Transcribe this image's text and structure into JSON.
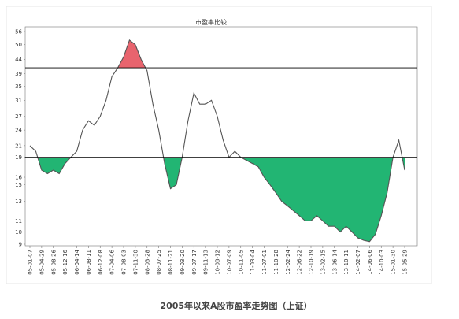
{
  "chart_data": {
    "type": "line",
    "title": "市盈率比较",
    "caption": "2005年以来A股市盈率走势图（上证）",
    "categories": [
      "05-01-07",
      null,
      "05-04-29",
      null,
      "05-08-26",
      null,
      "05-12-16",
      null,
      "06-04-14",
      null,
      "06-08-11",
      null,
      "06-12-08",
      null,
      "07-04-06",
      null,
      "07-08-03",
      null,
      "07-11-30",
      null,
      "08-03-28",
      null,
      "08-07-25",
      null,
      "08-11-21",
      null,
      "09-03-20",
      null,
      "09-07-17",
      null,
      "09-11-13",
      null,
      "10-03-12",
      null,
      "10-07-09",
      null,
      "10-11-05",
      null,
      "11-03-04",
      null,
      "11-07-01",
      null,
      "11-10-28",
      null,
      "12-02-24",
      null,
      "12-06-22",
      null,
      "12-10-19",
      null,
      "13-02-15",
      null,
      "13-06-14",
      null,
      "13-10-11",
      null,
      "14-02-07",
      null,
      "14-06-06",
      null,
      "14-10-03",
      null,
      "15-01-30",
      null,
      "15-05-29"
    ],
    "values": [
      21,
      20,
      17,
      16.5,
      17,
      16.5,
      18,
      19,
      20,
      24,
      26,
      25,
      27,
      31,
      38,
      41,
      45,
      52,
      50,
      44,
      40,
      30,
      24,
      18,
      14.5,
      15,
      19,
      26,
      33,
      30,
      30,
      31,
      27,
      22,
      19,
      20,
      19,
      18.5,
      18,
      17.5,
      16,
      15,
      14,
      13,
      12.5,
      12,
      11.5,
      11,
      11,
      11.5,
      11,
      10.5,
      10.5,
      10,
      10.5,
      10,
      9.5,
      9.3,
      9.2,
      9.8,
      11.5,
      14,
      19,
      22,
      17
    ],
    "color": "#555555",
    "log_scale": true,
    "ylim": [
      9,
      56
    ],
    "yticks": [
      9,
      10,
      11,
      13,
      15,
      16,
      19,
      21,
      24,
      27,
      31,
      35,
      39,
      44,
      50,
      56
    ],
    "reference_lines": [
      {
        "value": 41,
        "color": "#000000",
        "fill": "#e8646e",
        "side": "above"
      },
      {
        "value": 19,
        "color": "#000000",
        "fill": "#22b573",
        "side": "below"
      }
    ]
  }
}
